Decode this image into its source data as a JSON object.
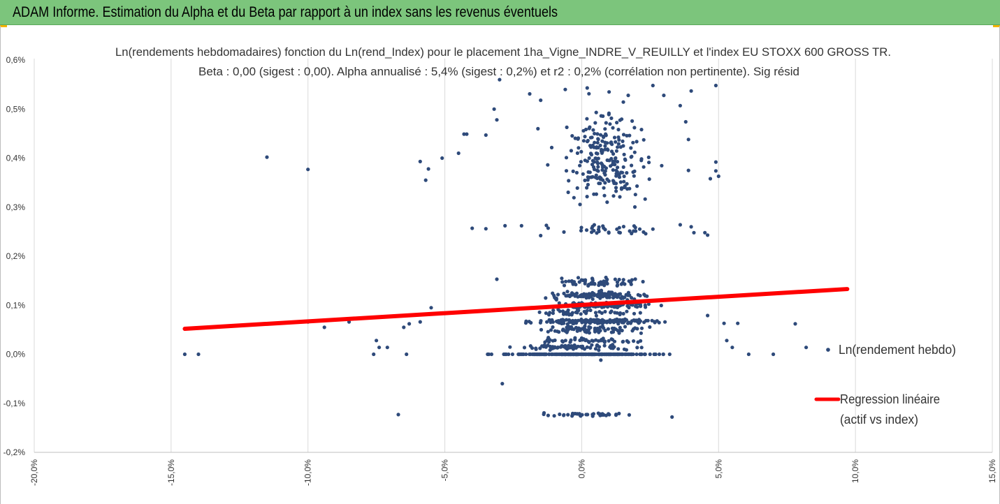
{
  "banner": {
    "title": "ADAM Informe. Estimation du Alpha et du Beta par rapport à un index sans les revenus éventuels"
  },
  "colors": {
    "banner_bg": "#7cc57c",
    "points": "#2e4a7a",
    "regression": "#ff0000",
    "grid": "#d9d9d9",
    "accent_corner": "#f5b400"
  },
  "chart_data": {
    "type": "scatter",
    "title_lines": [
      "Ln(rendements hebdomadaires) fonction du Ln(rend_Index) pour le placement 1ha_Vigne_INDRE_V_REUILLY et l'index EU STOXX 600 GROSS TR.",
      "Beta : 0,00 (sigest : 0,00). Alpha annualisé : 5,4% (sigest : 0,2%) et r2 : 0,2% (corrélation non pertinente). Sig résid"
    ],
    "xlim": [
      -20,
      15
    ],
    "ylim": [
      -0.2,
      0.6
    ],
    "x_ticks": [
      "-20,0%",
      "-15,0%",
      "-10,0%",
      "-5,0%",
      "0,0%",
      "5,0%",
      "10,0%",
      "15,0%"
    ],
    "y_ticks": [
      "0,6%",
      "0,5%",
      "0,4%",
      "0,3%",
      "0,2%",
      "0,1%",
      "0,0%",
      "-0,1%",
      "-0,2%"
    ],
    "grid": "vertical",
    "legend": {
      "placement": "right",
      "entries": [
        {
          "name": "Ln(rendement hebdo)",
          "marker": "point"
        },
        {
          "name": "Regression linéaire",
          "name_line2": "(actif vs index)",
          "marker": "line"
        }
      ]
    },
    "regression": {
      "x": [
        -14.5,
        9.7
      ],
      "y": [
        0.052,
        0.133
      ]
    },
    "series": [
      {
        "name": "Ln(rendement hebdo)",
        "bands": [
          {
            "y": 0.0,
            "x_center": 0.0,
            "x_spread": 4.5,
            "y_jitter": 0.0,
            "count": 260
          },
          {
            "y": 0.014,
            "x_center": 0.0,
            "x_spread": 3.6,
            "y_jitter": 0.004,
            "count": 70
          },
          {
            "y": 0.028,
            "x_center": 0.3,
            "x_spread": 3.6,
            "y_jitter": 0.004,
            "count": 45
          },
          {
            "y": 0.05,
            "x_center": 0.2,
            "x_spread": 3.2,
            "y_jitter": 0.006,
            "count": 80
          },
          {
            "y": 0.067,
            "x_center": 0.5,
            "x_spread": 3.5,
            "y_jitter": 0.004,
            "count": 170
          },
          {
            "y": 0.085,
            "x_center": 0.2,
            "x_spread": 3.0,
            "y_jitter": 0.006,
            "count": 45
          },
          {
            "y": 0.1,
            "x_center": 0.8,
            "x_spread": 2.8,
            "y_jitter": 0.005,
            "count": 130
          },
          {
            "y": 0.12,
            "x_center": 0.6,
            "x_spread": 3.0,
            "y_jitter": 0.006,
            "count": 140
          },
          {
            "y": 0.148,
            "x_center": 0.8,
            "x_spread": 2.4,
            "y_jitter": 0.007,
            "count": 60
          },
          {
            "y": 0.255,
            "x_center": 1.0,
            "x_spread": 3.2,
            "y_jitter": 0.008,
            "count": 35
          },
          {
            "y": 0.4,
            "x_center": 0.8,
            "x_spread": 2.6,
            "y_jitter": 0.08,
            "count": 230
          },
          {
            "y": -0.123,
            "x_center": 0.2,
            "x_spread": 2.8,
            "y_jitter": 0.003,
            "count": 38
          }
        ],
        "points": [
          {
            "x": -14.5,
            "y": 0.0
          },
          {
            "x": -14.0,
            "y": 0.0
          },
          {
            "x": -11.5,
            "y": 0.402
          },
          {
            "x": -10.0,
            "y": 0.377
          },
          {
            "x": -10.0,
            "y": 0.066
          },
          {
            "x": -9.4,
            "y": 0.055
          },
          {
            "x": -8.5,
            "y": 0.066
          },
          {
            "x": -7.6,
            "y": 0.0
          },
          {
            "x": -7.5,
            "y": 0.028
          },
          {
            "x": -7.4,
            "y": 0.014
          },
          {
            "x": -7.1,
            "y": 0.014
          },
          {
            "x": -6.7,
            "y": -0.123
          },
          {
            "x": -6.5,
            "y": 0.055
          },
          {
            "x": -6.4,
            "y": 0.0
          },
          {
            "x": -6.3,
            "y": 0.062
          },
          {
            "x": -5.9,
            "y": 0.393
          },
          {
            "x": -5.9,
            "y": 0.066
          },
          {
            "x": -5.7,
            "y": 0.355
          },
          {
            "x": -5.6,
            "y": 0.378
          },
          {
            "x": -5.5,
            "y": 0.095
          },
          {
            "x": -5.1,
            "y": 0.4
          },
          {
            "x": -4.5,
            "y": 0.41
          },
          {
            "x": -4.3,
            "y": 0.449
          },
          {
            "x": -4.2,
            "y": 0.449
          },
          {
            "x": -4.0,
            "y": 0.257
          },
          {
            "x": -3.5,
            "y": 0.256
          },
          {
            "x": -3.5,
            "y": 0.447
          },
          {
            "x": -3.2,
            "y": 0.5
          },
          {
            "x": -3.1,
            "y": 0.478
          },
          {
            "x": -3.1,
            "y": 0.153
          },
          {
            "x": -3.0,
            "y": 0.56
          },
          {
            "x": -2.9,
            "y": -0.06
          },
          {
            "x": -2.8,
            "y": 0.262
          },
          {
            "x": -2.2,
            "y": 0.262
          },
          {
            "x": -1.9,
            "y": 0.531
          },
          {
            "x": -1.6,
            "y": 0.46
          },
          {
            "x": -1.5,
            "y": 0.518
          },
          {
            "x": -1.5,
            "y": 0.242
          },
          {
            "x": -0.6,
            "y": 0.54
          },
          {
            "x": 0.2,
            "y": 0.543
          },
          {
            "x": 1.0,
            "y": 0.535
          },
          {
            "x": 1.7,
            "y": 0.528
          },
          {
            "x": 2.6,
            "y": 0.548
          },
          {
            "x": 3.0,
            "y": 0.528
          },
          {
            "x": 3.3,
            "y": -0.128
          },
          {
            "x": 3.6,
            "y": 0.507
          },
          {
            "x": 3.6,
            "y": 0.264
          },
          {
            "x": 3.8,
            "y": 0.474
          },
          {
            "x": 3.9,
            "y": 0.438
          },
          {
            "x": 3.9,
            "y": 0.375
          },
          {
            "x": 4.0,
            "y": 0.537
          },
          {
            "x": 4.0,
            "y": 0.26
          },
          {
            "x": 4.1,
            "y": 0.248
          },
          {
            "x": 4.5,
            "y": 0.248
          },
          {
            "x": 4.6,
            "y": 0.243
          },
          {
            "x": 4.6,
            "y": 0.079
          },
          {
            "x": 4.7,
            "y": 0.358
          },
          {
            "x": 4.9,
            "y": 0.392
          },
          {
            "x": 4.9,
            "y": 0.548
          },
          {
            "x": 4.9,
            "y": 0.374
          },
          {
            "x": 5.0,
            "y": 0.363
          },
          {
            "x": 5.2,
            "y": 0.063
          },
          {
            "x": 5.3,
            "y": 0.028
          },
          {
            "x": 5.5,
            "y": 0.014
          },
          {
            "x": 5.7,
            "y": 0.063
          },
          {
            "x": 6.1,
            "y": 0.0
          },
          {
            "x": 7.0,
            "y": 0.0
          },
          {
            "x": 7.8,
            "y": 0.062
          },
          {
            "x": 8.2,
            "y": 0.014
          },
          {
            "x": 9.0,
            "y": 0.009
          },
          {
            "x": 0.7,
            "y": -0.012
          }
        ]
      }
    ]
  }
}
